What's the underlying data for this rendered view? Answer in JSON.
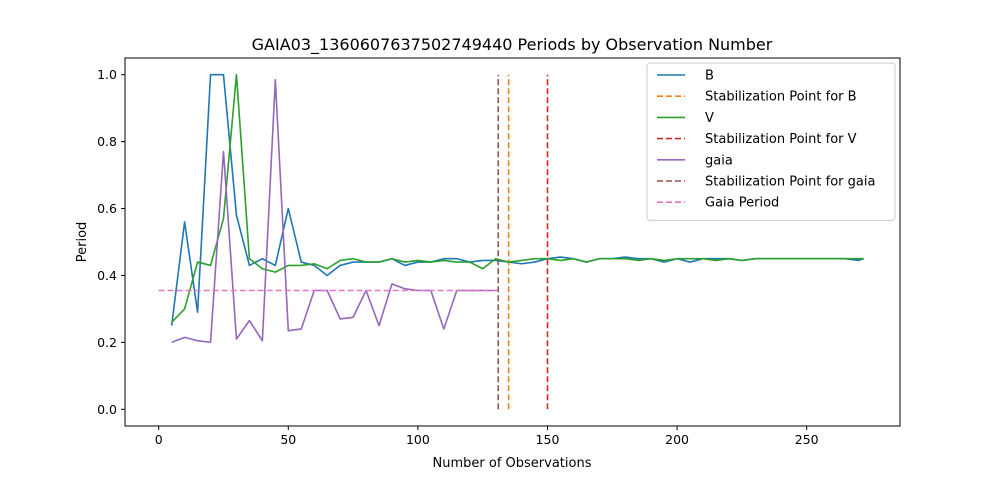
{
  "chart_data": {
    "type": "line",
    "title": "GAIA03_1360607637502749440 Periods by Observation Number",
    "xlabel": "Number of Observations",
    "ylabel": "Period",
    "xlim": [
      -13,
      286
    ],
    "ylim": [
      -0.05,
      1.05
    ],
    "xticks": [
      0,
      50,
      100,
      150,
      200,
      250
    ],
    "yticks": [
      0.0,
      0.2,
      0.4,
      0.6,
      0.8,
      1.0
    ],
    "grid": false,
    "legend_position": "top-right",
    "series": [
      {
        "name": "B",
        "style": "solid",
        "color": "#1f77b4",
        "x": [
          5,
          10,
          15,
          20,
          25,
          30,
          35,
          40,
          45,
          50,
          55,
          60,
          65,
          70,
          75,
          80,
          85,
          90,
          95,
          100,
          105,
          110,
          115,
          120,
          125,
          130,
          135,
          140,
          145,
          150,
          155,
          160,
          165,
          170,
          175,
          180,
          185,
          190,
          195,
          200,
          205,
          210,
          215,
          220,
          225,
          230,
          235,
          240,
          245,
          250,
          255,
          260,
          265,
          270,
          272
        ],
        "y": [
          0.25,
          0.56,
          0.29,
          1.0,
          1.0,
          0.58,
          0.43,
          0.45,
          0.43,
          0.6,
          0.44,
          0.43,
          0.4,
          0.43,
          0.44,
          0.44,
          0.44,
          0.45,
          0.43,
          0.44,
          0.44,
          0.45,
          0.45,
          0.44,
          0.445,
          0.445,
          0.44,
          0.435,
          0.44,
          0.45,
          0.455,
          0.45,
          0.44,
          0.45,
          0.45,
          0.455,
          0.45,
          0.45,
          0.44,
          0.45,
          0.44,
          0.45,
          0.45,
          0.45,
          0.445,
          0.45,
          0.45,
          0.45,
          0.45,
          0.45,
          0.45,
          0.45,
          0.45,
          0.445,
          0.45
        ]
      },
      {
        "name": "Stabilization Point for B",
        "style": "dashed",
        "color": "#ff7f0e",
        "x": [
          135,
          135
        ],
        "y": [
          0.0,
          1.0
        ]
      },
      {
        "name": "V",
        "style": "solid",
        "color": "#2ca02c",
        "x": [
          5,
          10,
          15,
          20,
          25,
          30,
          35,
          40,
          45,
          50,
          55,
          60,
          65,
          70,
          75,
          80,
          85,
          90,
          95,
          100,
          105,
          110,
          115,
          120,
          125,
          130,
          135,
          140,
          145,
          150,
          155,
          160,
          165,
          170,
          175,
          180,
          185,
          190,
          195,
          200,
          205,
          210,
          215,
          220,
          225,
          230,
          235,
          240,
          245,
          250,
          255,
          260,
          265,
          270,
          272
        ],
        "y": [
          0.26,
          0.3,
          0.44,
          0.43,
          0.57,
          1.0,
          0.45,
          0.42,
          0.41,
          0.43,
          0.43,
          0.435,
          0.42,
          0.445,
          0.45,
          0.44,
          0.44,
          0.45,
          0.44,
          0.445,
          0.44,
          0.445,
          0.44,
          0.44,
          0.42,
          0.45,
          0.44,
          0.445,
          0.45,
          0.45,
          0.445,
          0.45,
          0.44,
          0.45,
          0.45,
          0.45,
          0.445,
          0.45,
          0.445,
          0.45,
          0.45,
          0.45,
          0.445,
          0.45,
          0.445,
          0.45,
          0.45,
          0.45,
          0.45,
          0.45,
          0.45,
          0.45,
          0.45,
          0.45,
          0.45
        ]
      },
      {
        "name": "Stabilization Point for V",
        "style": "dashed",
        "color": "#d62728",
        "x": [
          150,
          150
        ],
        "y": [
          0.0,
          1.0
        ]
      },
      {
        "name": "gaia",
        "style": "solid",
        "color": "#9467bd",
        "x": [
          5,
          10,
          15,
          20,
          25,
          30,
          35,
          40,
          45,
          50,
          55,
          60,
          65,
          70,
          75,
          80,
          85,
          90,
          95,
          100,
          105,
          110,
          115,
          120,
          125,
          130
        ],
        "y": [
          0.2,
          0.215,
          0.205,
          0.2,
          0.77,
          0.21,
          0.265,
          0.205,
          0.985,
          0.235,
          0.24,
          0.355,
          0.355,
          0.27,
          0.275,
          0.355,
          0.25,
          0.375,
          0.36,
          0.355,
          0.355,
          0.24,
          0.355,
          0.355,
          0.355,
          0.355
        ]
      },
      {
        "name": "Stabilization Point for gaia",
        "style": "dashed",
        "color": "#8c564b",
        "x": [
          131,
          131
        ],
        "y": [
          0.0,
          1.0
        ]
      },
      {
        "name": "Gaia Period",
        "style": "dashed",
        "color": "#e377c2",
        "x": [
          0,
          131
        ],
        "y": [
          0.355,
          0.355
        ]
      }
    ]
  }
}
